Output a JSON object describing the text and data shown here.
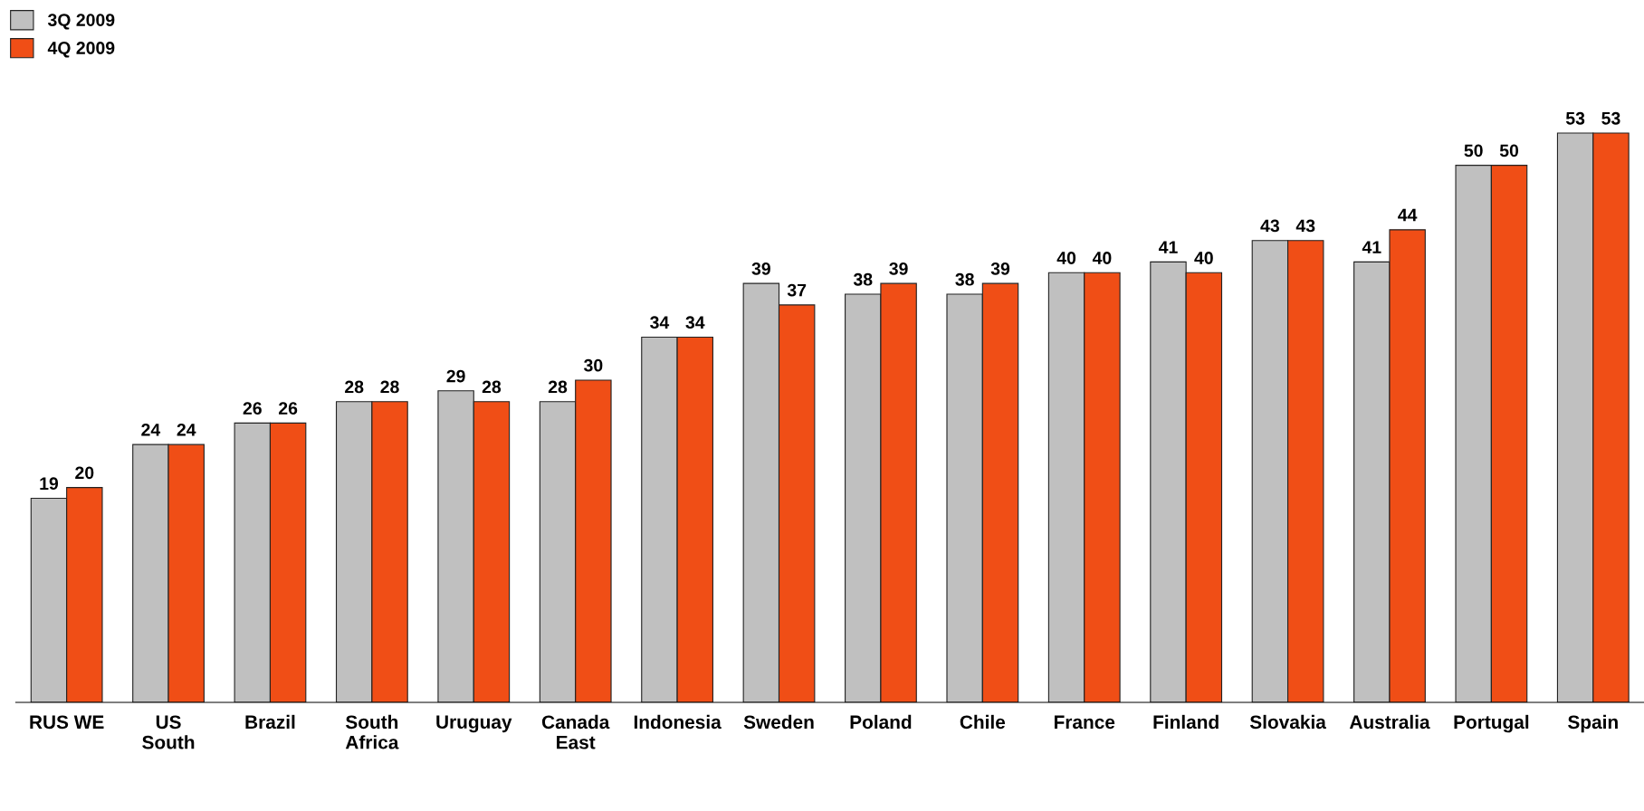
{
  "chart_data": {
    "type": "bar",
    "categories": [
      "RUS WE",
      "US\nSouth",
      "Brazil",
      "South\nAfrica",
      "Uruguay",
      "Canada\nEast",
      "Indonesia",
      "Sweden",
      "Poland",
      "Chile",
      "France",
      "Finland",
      "Slovakia",
      "Australia",
      "Portugal",
      "Spain"
    ],
    "series": [
      {
        "name": "3Q 2009",
        "color": "#c0c0c0",
        "values": [
          19,
          24,
          26,
          28,
          29,
          28,
          34,
          39,
          38,
          38,
          40,
          41,
          43,
          41,
          50,
          53
        ]
      },
      {
        "name": "4Q 2009",
        "color": "#f04e16",
        "values": [
          20,
          24,
          26,
          28,
          28,
          30,
          34,
          37,
          39,
          39,
          40,
          40,
          43,
          44,
          50,
          53
        ]
      }
    ],
    "data_labels": true,
    "legend": "top left",
    "tick_labels": "x",
    "grid": false
  }
}
